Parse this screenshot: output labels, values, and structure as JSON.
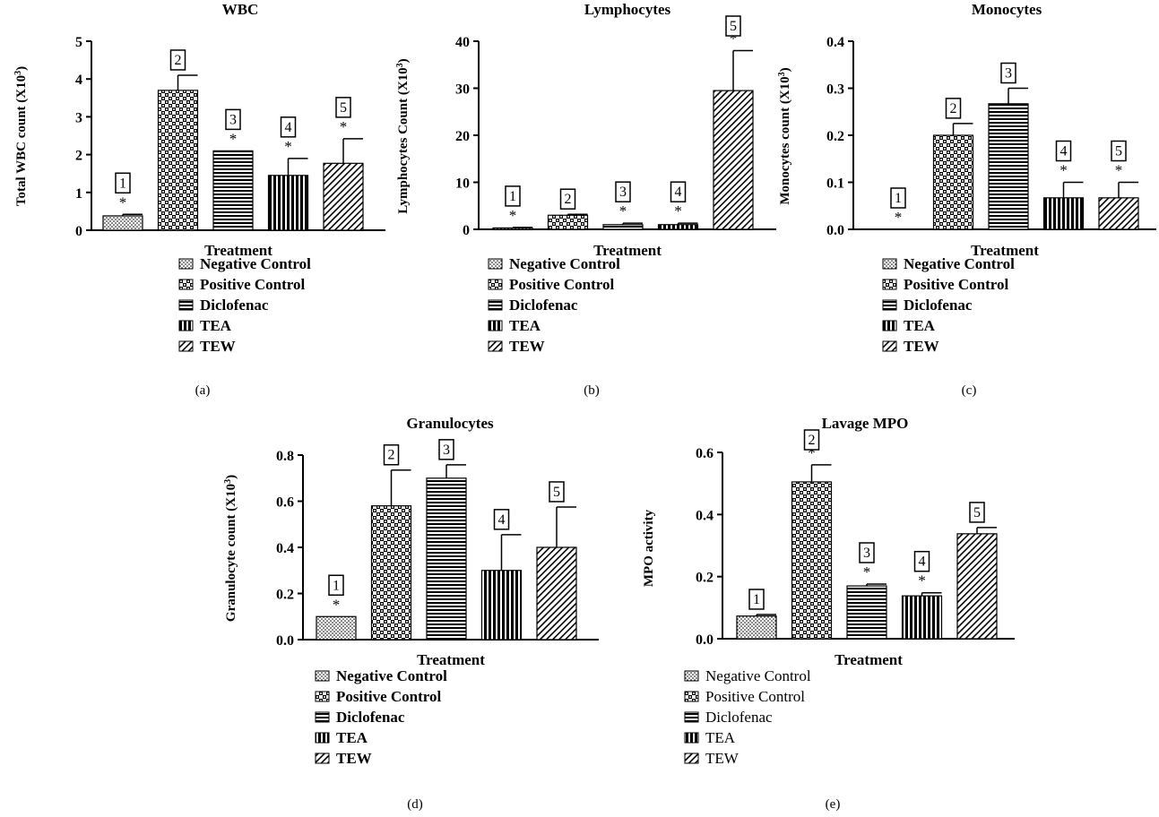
{
  "legend_entries": [
    {
      "name": "Negative Control",
      "pattern": "dots"
    },
    {
      "name": "Positive Control",
      "pattern": "checker"
    },
    {
      "name": "Diclofenac",
      "pattern": "hlines"
    },
    {
      "name": "TEA",
      "pattern": "vlines"
    },
    {
      "name": "TEW",
      "pattern": "diag"
    }
  ],
  "chart_data": [
    {
      "type": "bar",
      "panel": "(a)",
      "title": "WBC",
      "ylabel": "Total WBC count (X10³)",
      "xlabel": "Treatment",
      "ylim": [
        0,
        5
      ],
      "yticks": [
        "0",
        "1",
        "2",
        "3",
        "4",
        "5"
      ],
      "categories": [
        "Negative Control",
        "Positive Control",
        "Diclofenac",
        "TEA",
        "TEW"
      ],
      "values": [
        0.38,
        3.7,
        2.1,
        1.45,
        1.77
      ],
      "errors": [
        0.04,
        0.4,
        0,
        0.45,
        0.65
      ],
      "group_labels": [
        "1",
        "2",
        "3",
        "4",
        "5"
      ],
      "significance": [
        "*",
        "",
        "*",
        "*",
        "*"
      ],
      "legend_bold": true
    },
    {
      "type": "bar",
      "panel": "(b)",
      "title": "Lymphocytes",
      "ylabel": "Lymphocytes Count (X10³)",
      "xlabel": "Treatment",
      "ylim": [
        0,
        40
      ],
      "yticks": [
        "0",
        "10",
        "20",
        "30",
        "40"
      ],
      "categories": [
        "Negative Control",
        "Positive Control",
        "Diclofenac",
        "TEA",
        "TEW"
      ],
      "values": [
        0.3,
        3.0,
        1.0,
        1.0,
        29.5
      ],
      "errors": [
        0.1,
        0.2,
        0.3,
        0.3,
        8.5
      ],
      "group_labels": [
        "1",
        "2",
        "3",
        "4",
        "5"
      ],
      "significance": [
        "*",
        "",
        "*",
        "*",
        "*"
      ],
      "legend_bold": true
    },
    {
      "type": "bar",
      "panel": "(c)",
      "title": "Monocytes",
      "ylabel": "Monocytes count (X10³)",
      "xlabel": "Treatment",
      "ylim": [
        0,
        0.4
      ],
      "yticks": [
        "0.0",
        "0.1",
        "0.2",
        "0.3",
        "0.4"
      ],
      "categories": [
        "Negative Control",
        "Positive Control",
        "Diclofenac",
        "TEA",
        "TEW"
      ],
      "values": [
        0.0,
        0.2,
        0.267,
        0.067,
        0.067
      ],
      "errors": [
        0,
        0.025,
        0.033,
        0.033,
        0.033
      ],
      "group_labels": [
        "1",
        "2",
        "3",
        "4",
        "5"
      ],
      "significance": [
        "*",
        "",
        "",
        "*",
        "*"
      ],
      "legend_bold": true
    },
    {
      "type": "bar",
      "panel": "(d)",
      "title": "Granulocytes",
      "ylabel": "Granulocyte count (X10³)",
      "xlabel": "Treatment",
      "ylim": [
        0,
        0.8
      ],
      "yticks": [
        "0.0",
        "0.2",
        "0.4",
        "0.6",
        "0.8"
      ],
      "categories": [
        "Negative Control",
        "Positive Control",
        "Diclofenac",
        "TEA",
        "TEW"
      ],
      "values": [
        0.1,
        0.58,
        0.7,
        0.3,
        0.4
      ],
      "errors": [
        0,
        0.155,
        0.058,
        0.155,
        0.175
      ],
      "group_labels": [
        "1",
        "2",
        "3",
        "4",
        "5"
      ],
      "significance": [
        "*",
        "",
        "",
        "",
        ""
      ],
      "legend_bold": true
    },
    {
      "type": "bar",
      "panel": "(e)",
      "title": "Lavage MPO",
      "ylabel": "MPO activity",
      "xlabel": "Treatment",
      "ylim": [
        0,
        0.6
      ],
      "yticks": [
        "0.0",
        "0.2",
        "0.4",
        "0.6"
      ],
      "categories": [
        "Negative Control",
        "Positive Control",
        "Diclofenac",
        "TEA",
        "TEW"
      ],
      "values": [
        0.073,
        0.505,
        0.17,
        0.138,
        0.338
      ],
      "errors": [
        0.005,
        0.055,
        0.006,
        0.01,
        0.02
      ],
      "group_labels": [
        "1",
        "2",
        "3",
        "4",
        "5"
      ],
      "significance": [
        "",
        "*",
        "*",
        "*",
        ""
      ],
      "legend_bold": false
    }
  ]
}
